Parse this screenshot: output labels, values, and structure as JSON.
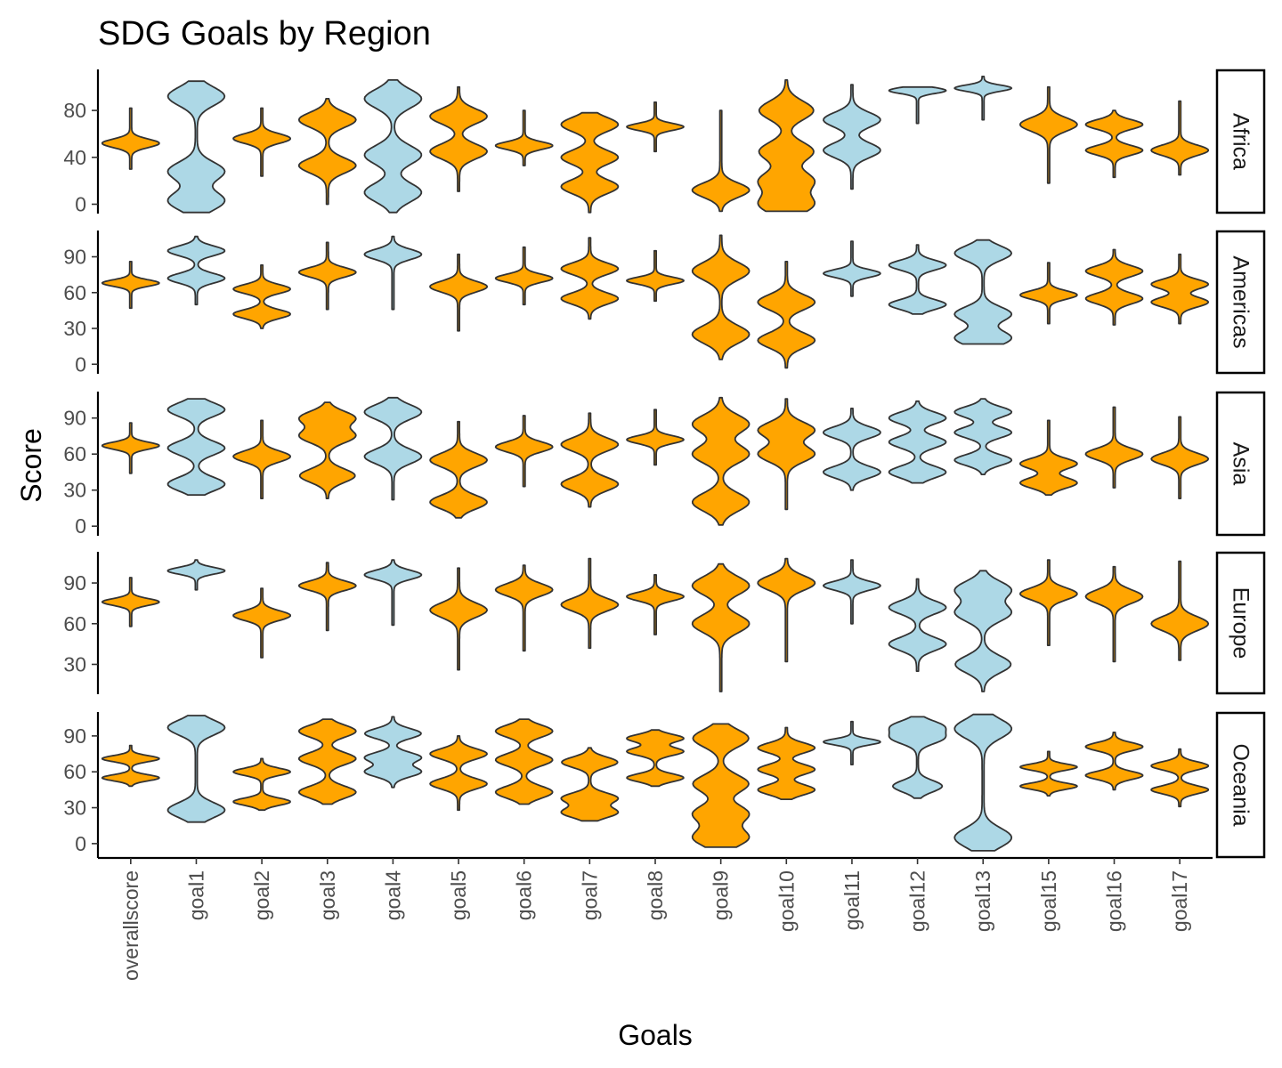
{
  "chart_data": {
    "type": "violin",
    "title": "SDG Goals by Region",
    "xlabel": "Goals",
    "ylabel": "Score",
    "categories": [
      "overallscore",
      "goal1",
      "goal2",
      "goal3",
      "goal4",
      "goal5",
      "goal6",
      "goal7",
      "goal8",
      "goal9",
      "goal10",
      "goal11",
      "goal12",
      "goal13",
      "goal15",
      "goal16",
      "goal17"
    ],
    "colors": {
      "blue": "#add8e6",
      "orange": "#ffa500",
      "outline": "#333333"
    },
    "fill_by_goal": [
      "orange",
      "blue",
      "orange",
      "orange",
      "blue",
      "orange",
      "orange",
      "orange",
      "orange",
      "orange",
      "orange",
      "blue",
      "blue",
      "blue",
      "orange",
      "orange",
      "orange"
    ],
    "facets": [
      {
        "region": "Africa",
        "yticks": [
          0,
          40,
          80
        ],
        "ylim": [
          -8,
          115
        ],
        "violins": [
          {
            "goal": "overallscore",
            "min": 30,
            "max": 82,
            "modes": [
              52
            ]
          },
          {
            "goal": "goal1",
            "min": -7,
            "max": 105,
            "modes": [
              3,
              28,
              92
            ]
          },
          {
            "goal": "goal2",
            "min": 24,
            "max": 82,
            "modes": [
              56
            ]
          },
          {
            "goal": "goal3",
            "min": 0,
            "max": 90,
            "modes": [
              33,
              72
            ]
          },
          {
            "goal": "goal4",
            "min": -7,
            "max": 106,
            "modes": [
              10,
              42,
              90
            ]
          },
          {
            "goal": "goal5",
            "min": 11,
            "max": 100,
            "modes": [
              45,
              75
            ]
          },
          {
            "goal": "goal6",
            "min": 33,
            "max": 80,
            "modes": [
              50
            ]
          },
          {
            "goal": "goal7",
            "min": -7,
            "max": 78,
            "modes": [
              15,
              40,
              68
            ]
          },
          {
            "goal": "goal8",
            "min": 45,
            "max": 87,
            "modes": [
              66
            ]
          },
          {
            "goal": "goal9",
            "min": -6,
            "max": 80,
            "modes": [
              12
            ]
          },
          {
            "goal": "goal10",
            "min": -6,
            "max": 106,
            "modes": [
              0,
              20,
              45,
              80
            ]
          },
          {
            "goal": "goal11",
            "min": 13,
            "max": 102,
            "modes": [
              46,
              72
            ]
          },
          {
            "goal": "goal12",
            "min": 69,
            "max": 100,
            "modes": [
              97
            ]
          },
          {
            "goal": "goal13",
            "min": 72,
            "max": 109,
            "modes": [
              99
            ]
          },
          {
            "goal": "goal15",
            "min": 18,
            "max": 100,
            "modes": [
              68
            ]
          },
          {
            "goal": "goal16",
            "min": 23,
            "max": 80,
            "modes": [
              46,
              68
            ]
          },
          {
            "goal": "goal17",
            "min": 25,
            "max": 88,
            "modes": [
              46
            ]
          }
        ]
      },
      {
        "region": "Americas",
        "yticks": [
          0,
          30,
          60,
          90
        ],
        "ylim": [
          -8,
          112
        ],
        "violins": [
          {
            "goal": "overallscore",
            "min": 47,
            "max": 86,
            "modes": [
              68
            ]
          },
          {
            "goal": "goal1",
            "min": 50,
            "max": 107,
            "modes": [
              72,
              95
            ]
          },
          {
            "goal": "goal2",
            "min": 30,
            "max": 83,
            "modes": [
              42,
              63
            ]
          },
          {
            "goal": "goal3",
            "min": 46,
            "max": 102,
            "modes": [
              77
            ]
          },
          {
            "goal": "goal4",
            "min": 46,
            "max": 107,
            "modes": [
              92
            ]
          },
          {
            "goal": "goal5",
            "min": 28,
            "max": 92,
            "modes": [
              65
            ]
          },
          {
            "goal": "goal6",
            "min": 50,
            "max": 98,
            "modes": [
              72
            ]
          },
          {
            "goal": "goal7",
            "min": 38,
            "max": 106,
            "modes": [
              55,
              80
            ]
          },
          {
            "goal": "goal8",
            "min": 53,
            "max": 95,
            "modes": [
              70
            ]
          },
          {
            "goal": "goal9",
            "min": 4,
            "max": 108,
            "modes": [
              25,
              78
            ]
          },
          {
            "goal": "goal10",
            "min": -3,
            "max": 86,
            "modes": [
              20,
              52
            ]
          },
          {
            "goal": "goal11",
            "min": 57,
            "max": 103,
            "modes": [
              76
            ]
          },
          {
            "goal": "goal12",
            "min": 42,
            "max": 100,
            "modes": [
              50,
              83
            ]
          },
          {
            "goal": "goal13",
            "min": 17,
            "max": 104,
            "modes": [
              22,
              42,
              93
            ]
          },
          {
            "goal": "goal15",
            "min": 34,
            "max": 85,
            "modes": [
              58
            ]
          },
          {
            "goal": "goal16",
            "min": 33,
            "max": 96,
            "modes": [
              55,
              78
            ]
          },
          {
            "goal": "goal17",
            "min": 34,
            "max": 92,
            "modes": [
              52,
              67
            ]
          }
        ]
      },
      {
        "region": "Asia",
        "yticks": [
          0,
          30,
          60,
          90
        ],
        "ylim": [
          -8,
          112
        ],
        "violins": [
          {
            "goal": "overallscore",
            "min": 44,
            "max": 86,
            "modes": [
              67
            ]
          },
          {
            "goal": "goal1",
            "min": 26,
            "max": 106,
            "modes": [
              35,
              65,
              97
            ]
          },
          {
            "goal": "goal2",
            "min": 23,
            "max": 88,
            "modes": [
              58
            ]
          },
          {
            "goal": "goal3",
            "min": 23,
            "max": 103,
            "modes": [
              42,
              75,
              90
            ]
          },
          {
            "goal": "goal4",
            "min": 22,
            "max": 107,
            "modes": [
              58,
              95
            ]
          },
          {
            "goal": "goal5",
            "min": 7,
            "max": 87,
            "modes": [
              20,
              55
            ]
          },
          {
            "goal": "goal6",
            "min": 33,
            "max": 92,
            "modes": [
              66
            ]
          },
          {
            "goal": "goal7",
            "min": 16,
            "max": 94,
            "modes": [
              35,
              68
            ]
          },
          {
            "goal": "goal8",
            "min": 51,
            "max": 97,
            "modes": [
              72
            ]
          },
          {
            "goal": "goal9",
            "min": 1,
            "max": 107,
            "modes": [
              20,
              60,
              85
            ]
          },
          {
            "goal": "goal10",
            "min": 14,
            "max": 106,
            "modes": [
              60,
              80
            ]
          },
          {
            "goal": "goal11",
            "min": 30,
            "max": 98,
            "modes": [
              45,
              78
            ]
          },
          {
            "goal": "goal12",
            "min": 36,
            "max": 104,
            "modes": [
              45,
              70,
              90
            ]
          },
          {
            "goal": "goal13",
            "min": 43,
            "max": 106,
            "modes": [
              55,
              78,
              95
            ]
          },
          {
            "goal": "goal15",
            "min": 26,
            "max": 88,
            "modes": [
              36,
              52
            ]
          },
          {
            "goal": "goal16",
            "min": 32,
            "max": 99,
            "modes": [
              60
            ]
          },
          {
            "goal": "goal17",
            "min": 23,
            "max": 91,
            "modes": [
              56
            ]
          }
        ]
      },
      {
        "region": "Europe",
        "yticks": [
          30,
          60,
          90
        ],
        "ylim": [
          8,
          113
        ],
        "violins": [
          {
            "goal": "overallscore",
            "min": 58,
            "max": 94,
            "modes": [
              76
            ]
          },
          {
            "goal": "goal1",
            "min": 85,
            "max": 107,
            "modes": [
              99
            ]
          },
          {
            "goal": "goal2",
            "min": 35,
            "max": 86,
            "modes": [
              66
            ]
          },
          {
            "goal": "goal3",
            "min": 55,
            "max": 105,
            "modes": [
              88
            ]
          },
          {
            "goal": "goal4",
            "min": 59,
            "max": 107,
            "modes": [
              96
            ]
          },
          {
            "goal": "goal5",
            "min": 26,
            "max": 101,
            "modes": [
              70
            ]
          },
          {
            "goal": "goal6",
            "min": 40,
            "max": 103,
            "modes": [
              85
            ]
          },
          {
            "goal": "goal7",
            "min": 42,
            "max": 108,
            "modes": [
              74
            ]
          },
          {
            "goal": "goal8",
            "min": 52,
            "max": 96,
            "modes": [
              80
            ]
          },
          {
            "goal": "goal9",
            "min": 10,
            "max": 104,
            "modes": [
              60,
              88
            ]
          },
          {
            "goal": "goal10",
            "min": 32,
            "max": 108,
            "modes": [
              90
            ]
          },
          {
            "goal": "goal11",
            "min": 60,
            "max": 107,
            "modes": [
              88
            ]
          },
          {
            "goal": "goal12",
            "min": 25,
            "max": 93,
            "modes": [
              45,
              72
            ]
          },
          {
            "goal": "goal13",
            "min": 10,
            "max": 99,
            "modes": [
              30,
              68,
              85
            ]
          },
          {
            "goal": "goal15",
            "min": 44,
            "max": 107,
            "modes": [
              82
            ]
          },
          {
            "goal": "goal16",
            "min": 32,
            "max": 102,
            "modes": [
              80
            ]
          },
          {
            "goal": "goal17",
            "min": 33,
            "max": 106,
            "modes": [
              60
            ]
          }
        ]
      },
      {
        "region": "Oceania",
        "yticks": [
          0,
          30,
          60,
          90
        ],
        "ylim": [
          -12,
          110
        ],
        "violins": [
          {
            "goal": "overallscore",
            "min": 48,
            "max": 82,
            "modes": [
              55,
              71
            ]
          },
          {
            "goal": "goal1",
            "min": 18,
            "max": 107,
            "modes": [
              28,
              97
            ]
          },
          {
            "goal": "goal2",
            "min": 28,
            "max": 71,
            "modes": [
              35,
              60
            ]
          },
          {
            "goal": "goal3",
            "min": 33,
            "max": 104,
            "modes": [
              43,
              71,
              94
            ]
          },
          {
            "goal": "goal4",
            "min": 47,
            "max": 106,
            "modes": [
              60,
              72,
              92
            ]
          },
          {
            "goal": "goal5",
            "min": 28,
            "max": 90,
            "modes": [
              50,
              75
            ]
          },
          {
            "goal": "goal6",
            "min": 33,
            "max": 104,
            "modes": [
              43,
              70,
              94
            ]
          },
          {
            "goal": "goal7",
            "min": 19,
            "max": 80,
            "modes": [
              26,
              38,
              68
            ]
          },
          {
            "goal": "goal8",
            "min": 48,
            "max": 95,
            "modes": [
              55,
              77,
              88
            ]
          },
          {
            "goal": "goal9",
            "min": -3,
            "max": 100,
            "modes": [
              5,
              25,
              50,
              88
            ]
          },
          {
            "goal": "goal10",
            "min": 37,
            "max": 97,
            "modes": [
              45,
              62,
              80
            ]
          },
          {
            "goal": "goal11",
            "min": 66,
            "max": 102,
            "modes": [
              85
            ]
          },
          {
            "goal": "goal12",
            "min": 38,
            "max": 106,
            "modes": [
              48,
              88,
              98
            ]
          },
          {
            "goal": "goal13",
            "min": -6,
            "max": 108,
            "modes": [
              5,
              96
            ]
          },
          {
            "goal": "goal15",
            "min": 40,
            "max": 77,
            "modes": [
              48,
              64
            ]
          },
          {
            "goal": "goal16",
            "min": 45,
            "max": 93,
            "modes": [
              57,
              81
            ]
          },
          {
            "goal": "goal17",
            "min": 31,
            "max": 79,
            "modes": [
              45,
              65
            ]
          }
        ]
      }
    ]
  }
}
